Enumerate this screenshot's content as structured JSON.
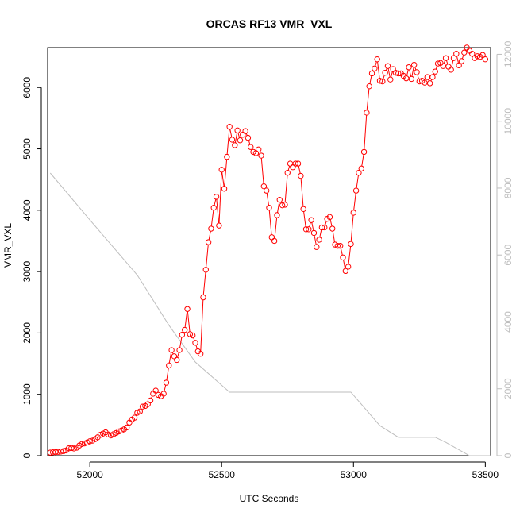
{
  "chart_data": {
    "type": "line",
    "title": "ORCAS RF13 VMR_VXL",
    "xlabel": "UTC Seconds",
    "ylabel": "VMR_VXL",
    "xlim": [
      51840,
      53520
    ],
    "ylim": [
      0,
      6650
    ],
    "y2lim": [
      0,
      12200
    ],
    "x_ticks": [
      52000,
      52500,
      53000,
      53500
    ],
    "y_ticks": [
      0,
      1000,
      2000,
      3000,
      4000,
      5000,
      6000
    ],
    "y2_ticks": [
      0,
      2000,
      4000,
      6000,
      8000,
      10000,
      12000
    ],
    "grid": false,
    "colors": {
      "primary": "#ff0000",
      "secondary": "#bebebe",
      "axis": "#000000"
    },
    "series": [
      {
        "axis": "left",
        "style": "points-and-lines",
        "color": "#ff0000",
        "points": [
          [
            51850,
            50
          ],
          [
            51860,
            55
          ],
          [
            51870,
            58
          ],
          [
            51880,
            62
          ],
          [
            51890,
            68
          ],
          [
            51900,
            75
          ],
          [
            51910,
            85
          ],
          [
            51920,
            120
          ],
          [
            51930,
            125
          ],
          [
            51940,
            118
          ],
          [
            51950,
            130
          ],
          [
            51960,
            165
          ],
          [
            51970,
            190
          ],
          [
            51980,
            200
          ],
          [
            51990,
            215
          ],
          [
            52000,
            235
          ],
          [
            52010,
            245
          ],
          [
            52020,
            270
          ],
          [
            52030,
            300
          ],
          [
            52040,
            340
          ],
          [
            52050,
            360
          ],
          [
            52060,
            380
          ],
          [
            52070,
            345
          ],
          [
            52080,
            330
          ],
          [
            52090,
            350
          ],
          [
            52100,
            370
          ],
          [
            52110,
            395
          ],
          [
            52120,
            410
          ],
          [
            52130,
            430
          ],
          [
            52140,
            460
          ],
          [
            52150,
            540
          ],
          [
            52160,
            590
          ],
          [
            52170,
            620
          ],
          [
            52180,
            700
          ],
          [
            52190,
            720
          ],
          [
            52200,
            800
          ],
          [
            52210,
            810
          ],
          [
            52220,
            840
          ],
          [
            52230,
            900
          ],
          [
            52240,
            1010
          ],
          [
            52250,
            1060
          ],
          [
            52260,
            990
          ],
          [
            52270,
            970
          ],
          [
            52280,
            1010
          ],
          [
            52290,
            1190
          ],
          [
            52300,
            1470
          ],
          [
            52310,
            1720
          ],
          [
            52320,
            1620
          ],
          [
            52330,
            1560
          ],
          [
            52340,
            1720
          ],
          [
            52350,
            1970
          ],
          [
            52360,
            2050
          ],
          [
            52370,
            2390
          ],
          [
            52380,
            1980
          ],
          [
            52390,
            1960
          ],
          [
            52400,
            1840
          ],
          [
            52410,
            1700
          ],
          [
            52420,
            1660
          ],
          [
            52430,
            2580
          ],
          [
            52440,
            3030
          ],
          [
            52450,
            3480
          ],
          [
            52460,
            3700
          ],
          [
            52470,
            4040
          ],
          [
            52480,
            4220
          ],
          [
            52490,
            3750
          ],
          [
            52500,
            4660
          ],
          [
            52510,
            4350
          ],
          [
            52520,
            4870
          ],
          [
            52530,
            5360
          ],
          [
            52540,
            5150
          ],
          [
            52550,
            5060
          ],
          [
            52560,
            5300
          ],
          [
            52570,
            5140
          ],
          [
            52580,
            5230
          ],
          [
            52590,
            5290
          ],
          [
            52600,
            5180
          ],
          [
            52610,
            5030
          ],
          [
            52620,
            4950
          ],
          [
            52630,
            4930
          ],
          [
            52640,
            4990
          ],
          [
            52650,
            4890
          ],
          [
            52660,
            4390
          ],
          [
            52670,
            4320
          ],
          [
            52680,
            4040
          ],
          [
            52690,
            3560
          ],
          [
            52700,
            3500
          ],
          [
            52710,
            3920
          ],
          [
            52720,
            4170
          ],
          [
            52730,
            4080
          ],
          [
            52740,
            4090
          ],
          [
            52750,
            4610
          ],
          [
            52760,
            4760
          ],
          [
            52770,
            4700
          ],
          [
            52780,
            4760
          ],
          [
            52790,
            4760
          ],
          [
            52800,
            4560
          ],
          [
            52810,
            4020
          ],
          [
            52820,
            3690
          ],
          [
            52830,
            3690
          ],
          [
            52840,
            3840
          ],
          [
            52850,
            3630
          ],
          [
            52860,
            3400
          ],
          [
            52870,
            3520
          ],
          [
            52880,
            3720
          ],
          [
            52890,
            3720
          ],
          [
            52900,
            3860
          ],
          [
            52910,
            3890
          ],
          [
            52920,
            3700
          ],
          [
            52930,
            3440
          ],
          [
            52940,
            3420
          ],
          [
            52950,
            3420
          ],
          [
            52960,
            3230
          ],
          [
            52970,
            3010
          ],
          [
            52980,
            3080
          ],
          [
            52990,
            3450
          ],
          [
            53000,
            3960
          ],
          [
            53010,
            4320
          ],
          [
            53020,
            4610
          ],
          [
            53030,
            4680
          ],
          [
            53040,
            4950
          ],
          [
            53050,
            5590
          ],
          [
            53060,
            6020
          ],
          [
            53070,
            6230
          ],
          [
            53080,
            6310
          ],
          [
            53090,
            6460
          ],
          [
            53100,
            6110
          ],
          [
            53110,
            6100
          ],
          [
            53120,
            6240
          ],
          [
            53130,
            6350
          ],
          [
            53140,
            6130
          ],
          [
            53150,
            6300
          ],
          [
            53160,
            6240
          ],
          [
            53170,
            6230
          ],
          [
            53180,
            6230
          ],
          [
            53190,
            6190
          ],
          [
            53200,
            6150
          ],
          [
            53210,
            6330
          ],
          [
            53220,
            6140
          ],
          [
            53230,
            6370
          ],
          [
            53240,
            6250
          ],
          [
            53250,
            6100
          ],
          [
            53260,
            6110
          ],
          [
            53270,
            6080
          ],
          [
            53280,
            6170
          ],
          [
            53290,
            6070
          ],
          [
            53300,
            6170
          ],
          [
            53310,
            6260
          ],
          [
            53320,
            6390
          ],
          [
            53330,
            6400
          ],
          [
            53340,
            6350
          ],
          [
            53350,
            6480
          ],
          [
            53360,
            6340
          ],
          [
            53370,
            6290
          ],
          [
            53380,
            6480
          ],
          [
            53390,
            6550
          ],
          [
            53400,
            6360
          ],
          [
            53410,
            6430
          ],
          [
            53420,
            6570
          ],
          [
            53430,
            6650
          ],
          [
            53440,
            6600
          ],
          [
            53450,
            6550
          ],
          [
            53460,
            6480
          ],
          [
            53470,
            6510
          ],
          [
            53480,
            6500
          ],
          [
            53490,
            6530
          ],
          [
            53500,
            6460
          ]
        ]
      },
      {
        "axis": "right",
        "style": "line",
        "color": "#bebebe",
        "points": [
          [
            51850,
            8450
          ],
          [
            52000,
            7050
          ],
          [
            52180,
            5400
          ],
          [
            52300,
            3900
          ],
          [
            52400,
            2800
          ],
          [
            52530,
            1900
          ],
          [
            52700,
            1900
          ],
          [
            52850,
            1900
          ],
          [
            52990,
            1900
          ],
          [
            53100,
            900
          ],
          [
            53170,
            550
          ],
          [
            53250,
            550
          ],
          [
            53310,
            550
          ],
          [
            53350,
            400
          ],
          [
            53440,
            0
          ],
          [
            53520,
            0
          ]
        ]
      }
    ]
  }
}
